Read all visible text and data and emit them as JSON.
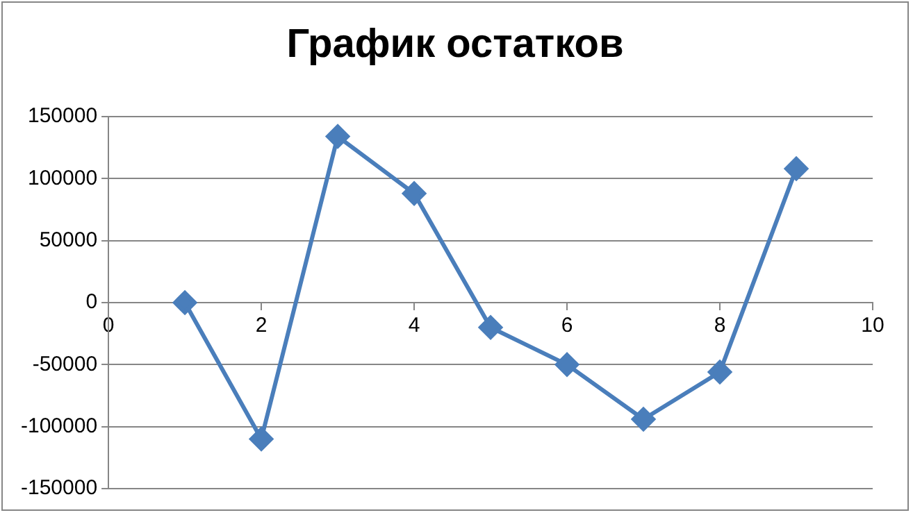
{
  "chart_data": {
    "type": "line",
    "title": "График остатков",
    "x": [
      1,
      2,
      3,
      4,
      5,
      6,
      7,
      8,
      9
    ],
    "series": [
      {
        "color": "#4a7ebb",
        "values": [
          0,
          -110000,
          134000,
          88000,
          -20000,
          -50000,
          -94000,
          -56000,
          108000
        ]
      }
    ],
    "xlim": [
      0,
      10
    ],
    "xticks": [
      0,
      2,
      4,
      6,
      8,
      10
    ],
    "ylim": [
      -150000,
      150000
    ],
    "yticks": [
      -150000,
      -100000,
      -50000,
      0,
      50000,
      100000,
      150000
    ],
    "grid": "y",
    "legend": false,
    "marker": "diamond",
    "line_style": "solid"
  }
}
